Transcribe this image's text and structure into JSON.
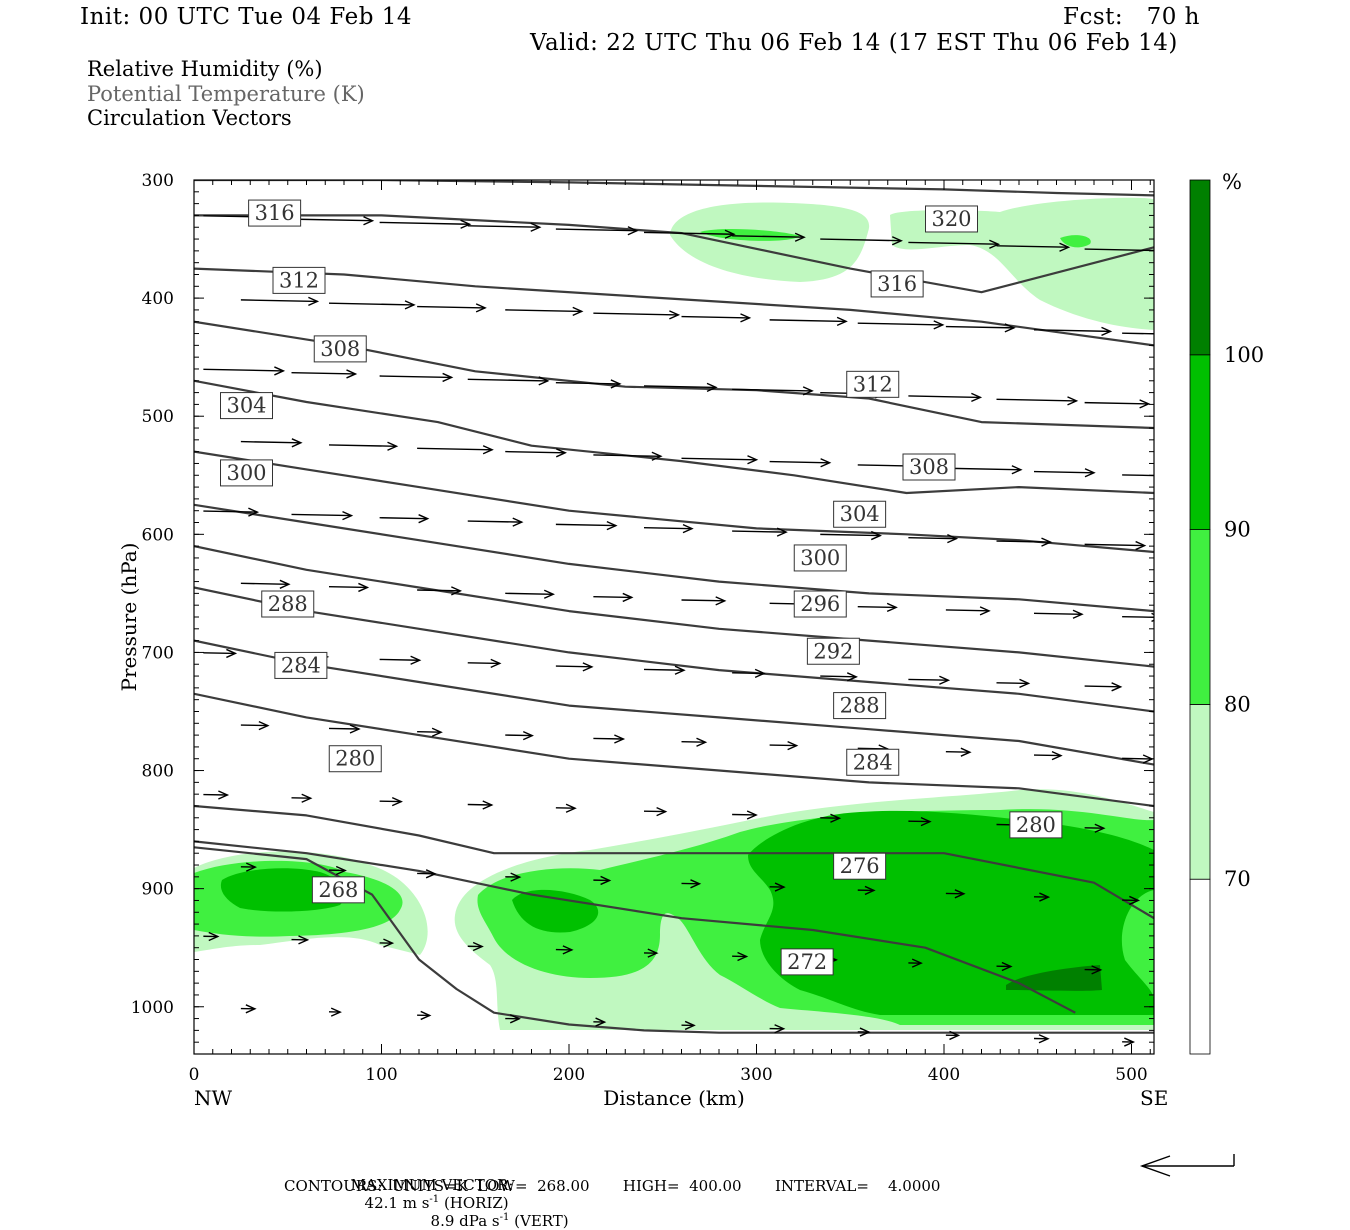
{
  "header": {
    "init": "Init: 00 UTC Tue 04 Feb 14",
    "fcst": "Fcst:   70 h",
    "valid": "Valid: 22 UTC Thu 06 Feb 14 (17 EST Thu 06 Feb 14)"
  },
  "legend": {
    "line1": "Relative Humidity (%)",
    "line2": "Potential Temperature (K)",
    "line3": "Circulation Vectors"
  },
  "footer": {
    "max_prefix": "MAXIMUM VECTOR:",
    "horiz_value": "42.1 m s",
    "horiz_exp": "-1",
    "horiz_tag": "(HORIZ)",
    "vert_value": "8.9 dPa s",
    "vert_exp": "-1",
    "vert_tag": "(VERT)",
    "contours": "CONTOURS:  UNITS=K  LOW=  268.00       HIGH=  400.00       INTERVAL=    4.0000"
  },
  "chart_data": {
    "type": "cross-section",
    "xlabel": "Distance (km)",
    "ylabel": "Pressure (hPa)",
    "xlim": [
      0,
      512
    ],
    "ylim": [
      1040,
      300
    ],
    "x_ticks": [
      0,
      100,
      200,
      300,
      400,
      500
    ],
    "y_ticks": [
      300,
      400,
      500,
      600,
      700,
      800,
      900,
      1000
    ],
    "x_end_labels": {
      "left": "NW",
      "right": "SE"
    },
    "colorbar": {
      "unit": "%",
      "levels": [
        70,
        80,
        90,
        100
      ],
      "colors": [
        "#ffffff",
        "#c0f8c0",
        "#40f040",
        "#00c000",
        "#008000"
      ]
    },
    "theta_contours": {
      "unit": "K",
      "low": 268,
      "high": 400,
      "interval": 4,
      "lines": [
        {
          "theta": 320,
          "x": [
            0,
            100,
            200,
            300,
            400,
            460,
            512
          ],
          "p": [
            300,
            300,
            302,
            305,
            308,
            311,
            313
          ]
        },
        {
          "theta": 316,
          "x": [
            0,
            100,
            200,
            260,
            350,
            420,
            512
          ],
          "p": [
            330,
            330,
            338,
            345,
            375,
            395,
            357
          ]
        },
        {
          "theta": 312,
          "x": [
            0,
            80,
            150,
            250,
            350,
            420,
            512
          ],
          "p": [
            375,
            380,
            390,
            400,
            410,
            420,
            440
          ]
        },
        {
          "theta": 308,
          "x": [
            0,
            80,
            150,
            230,
            300,
            360,
            420,
            512
          ],
          "p": [
            420,
            440,
            462,
            475,
            478,
            485,
            505,
            510
          ]
        },
        {
          "theta": 304,
          "x": [
            0,
            60,
            130,
            180,
            260,
            320,
            380,
            440,
            512
          ],
          "p": [
            470,
            488,
            505,
            525,
            538,
            550,
            565,
            560,
            565
          ]
        },
        {
          "theta": 300,
          "x": [
            0,
            60,
            120,
            200,
            300,
            380,
            440,
            512
          ],
          "p": [
            530,
            545,
            560,
            580,
            595,
            600,
            605,
            615
          ]
        },
        {
          "theta": 296,
          "x": [
            0,
            60,
            120,
            200,
            280,
            360,
            440,
            512
          ],
          "p": [
            575,
            590,
            605,
            625,
            640,
            650,
            655,
            665
          ]
        },
        {
          "theta": 292,
          "x": [
            0,
            60,
            120,
            200,
            280,
            360,
            440,
            512
          ],
          "p": [
            610,
            630,
            645,
            665,
            680,
            690,
            700,
            712
          ]
        },
        {
          "theta": 288,
          "x": [
            0,
            60,
            120,
            200,
            280,
            360,
            440,
            512
          ],
          "p": [
            645,
            665,
            680,
            700,
            715,
            725,
            735,
            750
          ]
        },
        {
          "theta": 284,
          "x": [
            0,
            60,
            120,
            200,
            280,
            360,
            440,
            512
          ],
          "p": [
            690,
            710,
            725,
            745,
            755,
            765,
            775,
            795
          ]
        },
        {
          "theta": 280,
          "x": [
            0,
            60,
            120,
            200,
            280,
            360,
            440,
            512
          ],
          "p": [
            735,
            755,
            770,
            790,
            800,
            810,
            815,
            830
          ]
        },
        {
          "theta": 276,
          "x": [
            0,
            60,
            120,
            160,
            260,
            330,
            400,
            480,
            512
          ],
          "p": [
            830,
            838,
            855,
            870,
            870,
            870,
            870,
            895,
            925
          ]
        },
        {
          "theta": 272,
          "x": [
            0,
            60,
            120,
            180,
            260,
            330,
            390,
            440,
            470
          ],
          "p": [
            860,
            870,
            885,
            905,
            925,
            935,
            950,
            980,
            1005
          ]
        },
        {
          "theta": 268,
          "x": [
            0,
            60,
            95,
            120,
            140,
            160,
            200,
            240,
            280,
            340,
            380,
            420,
            470,
            512
          ],
          "p": [
            865,
            875,
            905,
            960,
            985,
            1005,
            1015,
            1020,
            1022,
            1022,
            1022,
            1022,
            1022,
            1022
          ]
        }
      ],
      "labels": [
        {
          "theta": "316",
          "x": 43,
          "p": 328
        },
        {
          "theta": "320",
          "x": 404,
          "p": 333
        },
        {
          "theta": "312",
          "x": 56,
          "p": 385
        },
        {
          "theta": "316",
          "x": 375,
          "p": 388
        },
        {
          "theta": "308",
          "x": 78,
          "p": 443
        },
        {
          "theta": "312",
          "x": 362,
          "p": 473
        },
        {
          "theta": "304",
          "x": 28,
          "p": 491
        },
        {
          "theta": "300",
          "x": 28,
          "p": 548
        },
        {
          "theta": "308",
          "x": 392,
          "p": 543
        },
        {
          "theta": "304",
          "x": 355,
          "p": 583
        },
        {
          "theta": "300",
          "x": 334,
          "p": 620
        },
        {
          "theta": "288",
          "x": 50,
          "p": 659
        },
        {
          "theta": "296",
          "x": 334,
          "p": 659
        },
        {
          "theta": "292",
          "x": 341,
          "p": 699
        },
        {
          "theta": "284",
          "x": 57,
          "p": 711
        },
        {
          "theta": "288",
          "x": 355,
          "p": 745
        },
        {
          "theta": "280",
          "x": 86,
          "p": 790
        },
        {
          "theta": "284",
          "x": 362,
          "p": 793
        },
        {
          "theta": "280",
          "x": 449,
          "p": 846
        },
        {
          "theta": "276",
          "x": 355,
          "p": 881
        },
        {
          "theta": "268",
          "x": 77,
          "p": 901
        },
        {
          "theta": "272",
          "x": 327,
          "p": 962
        }
      ]
    }
  }
}
